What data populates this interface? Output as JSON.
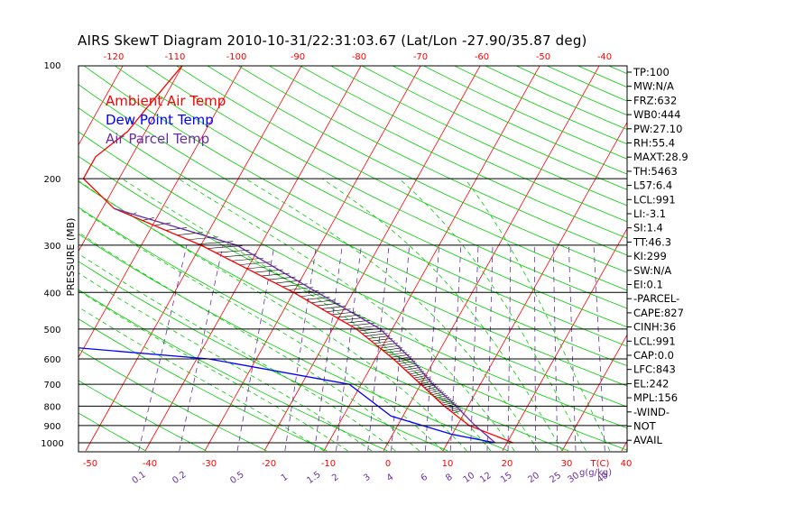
{
  "chart_data": {
    "type": "line",
    "title": "AIRS SkewT Diagram 2010-10-31/22:31:03.67 (Lat/Lon -27.90/35.87 deg)",
    "ylabel": "PRESSURE (MB)",
    "x_bottom_unit": "T(C)",
    "mixing_ratio_unit": "g(g/kg)",
    "y_scale": "log",
    "ylim": [
      1050,
      100
    ],
    "xlim_bottom": [
      -52,
      28
    ],
    "xlim_top": [
      -125,
      -35
    ],
    "pressure_ticks": [
      100,
      200,
      300,
      400,
      500,
      600,
      700,
      800,
      900,
      1000
    ],
    "x_bottom_ticks": [
      -50,
      -40,
      -30,
      -20,
      -10,
      0,
      10,
      20,
      30,
      40
    ],
    "x_top_ticks": [
      -120,
      -110,
      -100,
      -90,
      -80,
      -70,
      -60,
      -50,
      -40
    ],
    "mixing_ratio_labels": [
      "0.1",
      "0.2",
      "0.5",
      "1",
      "1.5",
      "2",
      "3",
      "4",
      "6",
      "8",
      "10",
      "12",
      "15",
      "20",
      "25",
      "30",
      "40"
    ],
    "grid": true,
    "legend_position": "top-left",
    "legend": [
      {
        "name": "Ambient Air Temp",
        "color": "#ff0000"
      },
      {
        "name": "Dew Point Temp",
        "color": "#0000ff"
      },
      {
        "name": "Air Parcel Temp",
        "color": "#6a2da8"
      }
    ],
    "series": [
      {
        "name": "Ambient Air Temp",
        "color": "#ff0000",
        "points": [
          [
            100,
            -70
          ],
          [
            130,
            -72
          ],
          [
            150,
            -73
          ],
          [
            175,
            -76
          ],
          [
            200,
            -76
          ],
          [
            240,
            -68
          ],
          [
            300,
            -50
          ],
          [
            400,
            -30
          ],
          [
            500,
            -16
          ],
          [
            600,
            -7
          ],
          [
            700,
            0
          ],
          [
            800,
            6
          ],
          [
            900,
            12
          ],
          [
            1000,
            21
          ]
        ]
      },
      {
        "name": "Dew Point Temp",
        "color": "#0000ff",
        "points": [
          [
            100,
            -90
          ],
          [
            150,
            -97
          ],
          [
            190,
            -92
          ],
          [
            240,
            -82
          ],
          [
            300,
            -88
          ],
          [
            400,
            -107
          ],
          [
            500,
            -100
          ],
          [
            600,
            -38
          ],
          [
            700,
            -12
          ],
          [
            850,
            -2
          ],
          [
            950,
            10
          ],
          [
            1000,
            18
          ]
        ]
      },
      {
        "name": "Air Parcel Temp",
        "color": "#6a2da8",
        "points": [
          [
            240,
            -68
          ],
          [
            300,
            -44
          ],
          [
            400,
            -26
          ],
          [
            500,
            -12
          ],
          [
            600,
            -4
          ],
          [
            700,
            2
          ],
          [
            800,
            8
          ],
          [
            900,
            13
          ],
          [
            1000,
            18
          ]
        ]
      }
    ],
    "stability_indices": [
      "TP:100",
      "MW:N/A",
      "FRZ:632",
      "WB0:444",
      "PW:27.10",
      "RH:55.4",
      "MAXT:28.9",
      "TH:5463",
      "L57:6.4",
      "LCL:991",
      "LI:-3.1",
      "SI:1.4",
      "TT:46.3",
      "KI:299",
      "SW:N/A",
      "EI:0.1",
      "-PARCEL-",
      "CAPE:827",
      "CINH:36",
      "LCL:991",
      "CAP:0.0",
      "LFC:843",
      "EL:242",
      "MPL:156",
      "-WIND-",
      "NOT",
      "AVAIL"
    ]
  }
}
